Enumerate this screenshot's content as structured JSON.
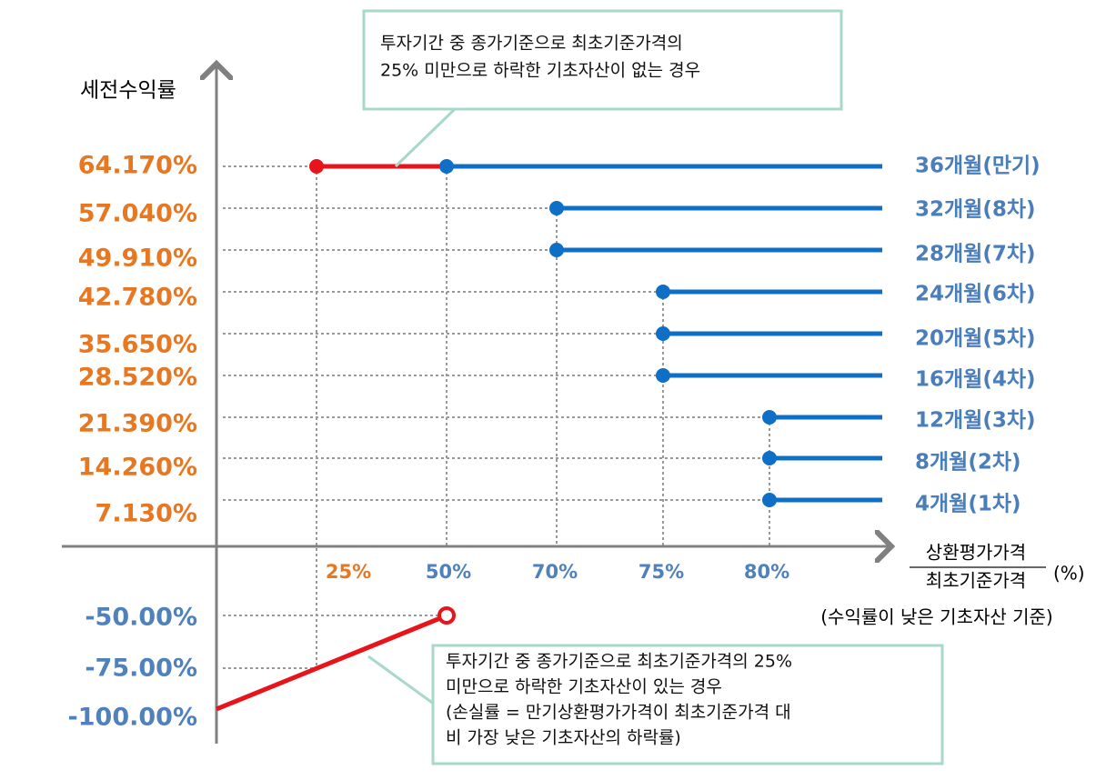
{
  "y_axis_label": "세전수익률",
  "y_ticks_positive": [
    "64.170%",
    "57.040%",
    "49.910%",
    "42.780%",
    "35.650%",
    "28.520%",
    "21.390%",
    "14.260%",
    "7.130%"
  ],
  "y_ticks_negative": [
    "-50.00%",
    "-75.00%",
    "-100.00%"
  ],
  "x_ticks": [
    "25%",
    "50%",
    "70%",
    "75%",
    "80%"
  ],
  "x_axis_label": {
    "numerator": "상환평가가격",
    "denominator": "최초기준가격",
    "unit": "(%)",
    "note": "(수익률이 낮은 기초자산 기준)"
  },
  "periods": [
    "36개월(만기)",
    "32개월(8차)",
    "28개월(7차)",
    "24개월(6차)",
    "20개월(5차)",
    "16개월(4차)",
    "12개월(3차)",
    "8개월(2차)",
    "4개월(1차)"
  ],
  "callouts": {
    "top": [
      "투자기간 중 종가기준으로 최초기준가격의",
      "25% 미만으로 하락한 기초자산이 없는 경우"
    ],
    "bottom": [
      "투자기간 중 종가기준으로 최초기준가격의 25%",
      "미만으로 하락한 기초자산이 있는 경우",
      "(손실률 = 만기상환평가가격이 최초기준가격 대",
      "비 가장 낮은 기초자산의 하락률)"
    ]
  }
}
